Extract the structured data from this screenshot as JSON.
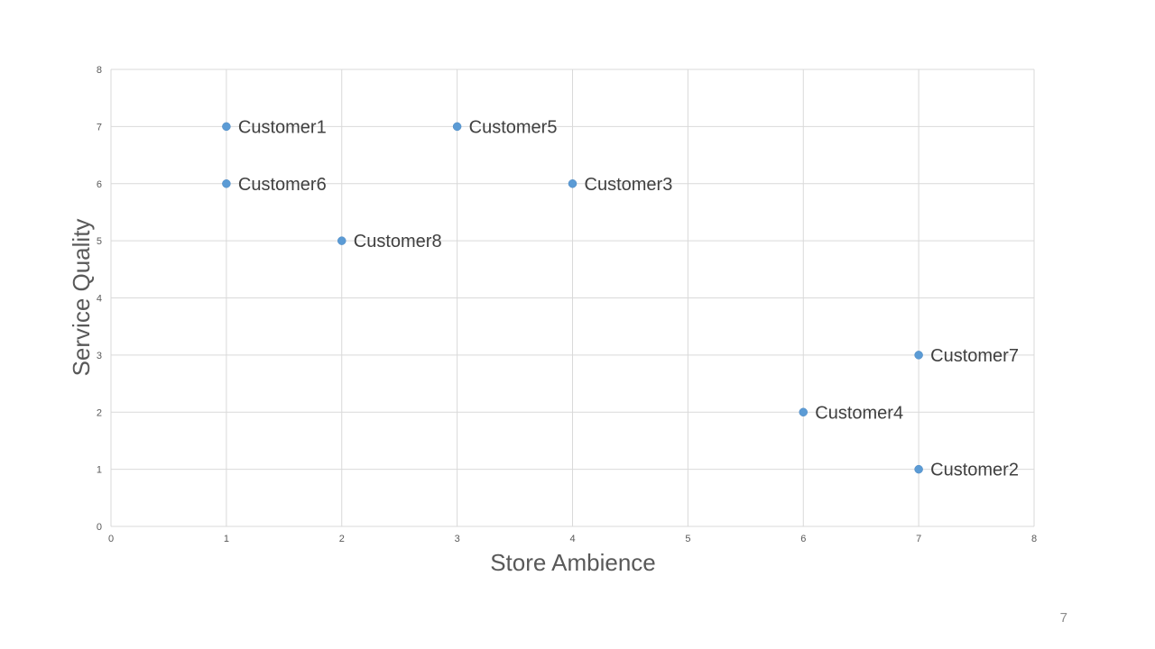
{
  "chart_data": {
    "type": "scatter",
    "title": "",
    "xlabel": "Store Ambience",
    "ylabel": "Service Quality",
    "xlim": [
      0,
      8
    ],
    "ylim": [
      0,
      8
    ],
    "x_ticks": [
      "0",
      "1",
      "2",
      "3",
      "4",
      "5",
      "6",
      "7",
      "8"
    ],
    "y_ticks": [
      "0",
      "1",
      "2",
      "3",
      "4",
      "5",
      "6",
      "7",
      "8"
    ],
    "grid": true,
    "legend": "none",
    "marker_color": "#5b9bd5",
    "points": [
      {
        "label": "Customer1",
        "x": 1,
        "y": 7
      },
      {
        "label": "Customer2",
        "x": 7,
        "y": 1
      },
      {
        "label": "Customer3",
        "x": 4,
        "y": 6
      },
      {
        "label": "Customer4",
        "x": 6,
        "y": 2
      },
      {
        "label": "Customer5",
        "x": 3,
        "y": 7
      },
      {
        "label": "Customer6",
        "x": 1,
        "y": 6
      },
      {
        "label": "Customer7",
        "x": 7,
        "y": 3
      },
      {
        "label": "Customer8",
        "x": 2,
        "y": 5
      }
    ]
  },
  "slide": {
    "page_number": "7"
  }
}
